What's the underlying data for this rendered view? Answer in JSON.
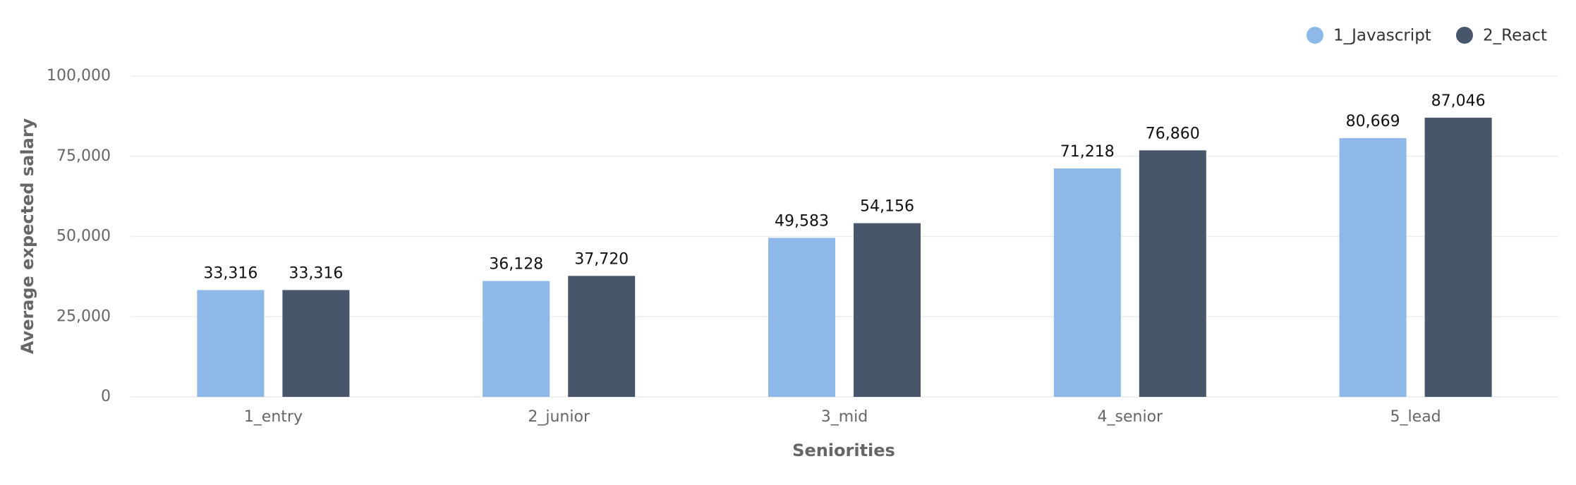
{
  "chart_data": {
    "type": "bar",
    "x_label": "Seniorities",
    "y_label": "Average expected salary",
    "categories": [
      "1_entry",
      "2_junior",
      "3_mid",
      "4_senior",
      "5_lead"
    ],
    "series": [
      {
        "name": "1_Javascript",
        "color": "#8db8e8",
        "values": [
          33316,
          36128,
          49583,
          71218,
          80669
        ],
        "value_labels": [
          "33,316",
          "36,128",
          "49,583",
          "71,218",
          "80,669"
        ]
      },
      {
        "name": "2_React",
        "color": "#48566b",
        "values": [
          33316,
          37720,
          54156,
          76860,
          87046
        ],
        "value_labels": [
          "33,316",
          "37,720",
          "54,156",
          "76,860",
          "87,046"
        ]
      }
    ],
    "ylim": [
      0,
      100000
    ],
    "yticks": [
      0,
      {
        "value": 25000,
        "label": "25,000"
      },
      {
        "value": 50000,
        "label": "50,000"
      },
      {
        "value": 75000,
        "label": "75,000"
      },
      {
        "value": 100000,
        "label": "100,000"
      }
    ],
    "grid": true,
    "legend": "top-right"
  }
}
